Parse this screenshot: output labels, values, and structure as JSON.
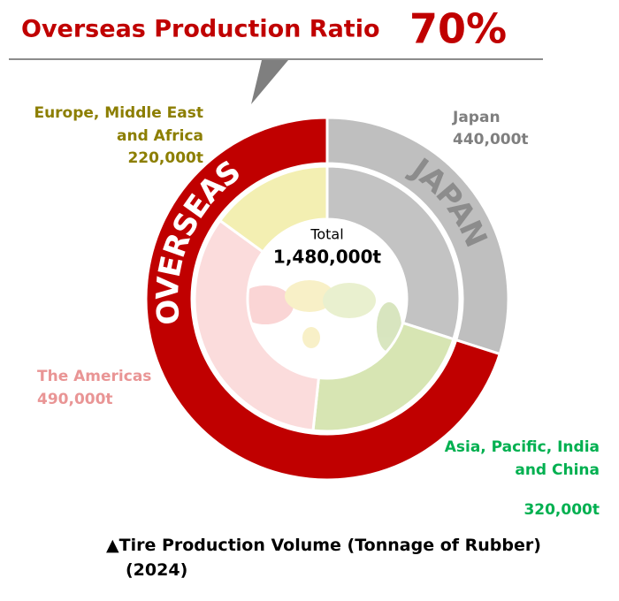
{
  "chart_data": {
    "type": "donut",
    "title": "Overseas Production Ratio",
    "ratio": {
      "value": 70,
      "label": "70%"
    },
    "total_title": "Total",
    "total": {
      "value": 1480000,
      "label": "1,480,000t"
    },
    "categories": [
      [
        "Japan"
      ],
      [
        "Asia, Pacific, India",
        "and China"
      ],
      [
        "The Americas"
      ],
      [
        "Europe, Middle East",
        "and Africa"
      ]
    ],
    "values": [
      440000,
      320000,
      490000,
      220000
    ],
    "value_labels": [
      "440,000t",
      "320,000t",
      "490,000t",
      "220,000t"
    ],
    "colors": [
      "#c3c3c3",
      "#d7e5b3",
      "#fbdcdc",
      "#f3efb2"
    ],
    "label_colors": [
      "#7f7f7f",
      "#00b050",
      "#e99595",
      "#8c7e00"
    ],
    "outer_ring": [
      {
        "name": "JAPAN",
        "color": "#bfbfbf"
      },
      {
        "name": "OVERSEAS",
        "color": "#c00000"
      }
    ],
    "caption": [
      "▲Tire Production Volume (Tonnage of Rubber)",
      "(2024)"
    ]
  }
}
